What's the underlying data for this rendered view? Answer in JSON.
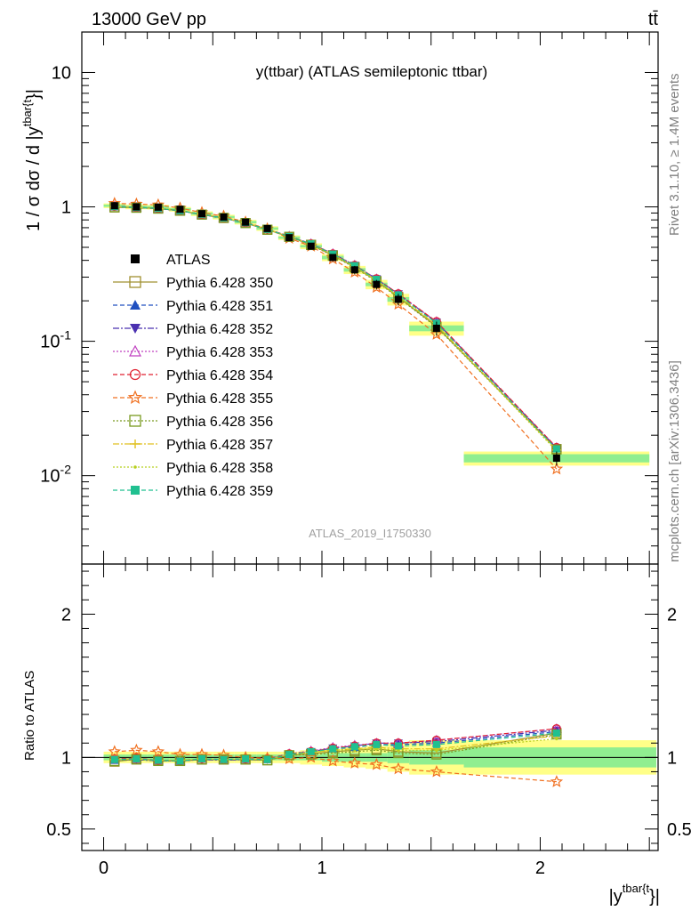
{
  "header": {
    "left": "13000 GeV pp",
    "right": "tt̄"
  },
  "side_labels": {
    "rivet": "Rivet 3.1.10, ≥ 1.4M events",
    "mcplots": "mcplots.cern.ch [arXiv:1306.3436]"
  },
  "chart_data": [
    {
      "type": "line",
      "panel": "main",
      "title": "y(ttbar) (ATLAS semileptonic ttbar)",
      "watermark": "ATLAS_2019_I1750330",
      "ylabel": "1 / σ dσ / d |y^{tbar{t}}|",
      "ylabel_main": "1 / σ dσ / d |y",
      "ylabel_sup": "tbar{t",
      "ylabel_tail": "}|",
      "xlabel": "|y^{tbar{t}}|",
      "yscale": "log",
      "xlim": [
        -0.1,
        2.54
      ],
      "ylim": [
        0.0022,
        20
      ],
      "legend_position": "left-middle",
      "y_ticks": [
        "10",
        "1",
        "10^-1",
        "10^-2"
      ],
      "x_bins": [
        [
          0.0,
          0.1
        ],
        [
          0.1,
          0.2
        ],
        [
          0.2,
          0.3
        ],
        [
          0.3,
          0.4
        ],
        [
          0.4,
          0.5
        ],
        [
          0.5,
          0.6
        ],
        [
          0.6,
          0.7
        ],
        [
          0.7,
          0.8
        ],
        [
          0.8,
          0.9
        ],
        [
          0.9,
          1.0
        ],
        [
          1.0,
          1.1
        ],
        [
          1.1,
          1.2
        ],
        [
          1.2,
          1.3
        ],
        [
          1.3,
          1.4
        ],
        [
          1.4,
          1.65
        ],
        [
          1.65,
          2.5
        ]
      ],
      "x": [
        0.05,
        0.15,
        0.25,
        0.35,
        0.45,
        0.55,
        0.65,
        0.75,
        0.85,
        0.95,
        1.05,
        1.15,
        1.25,
        1.35,
        1.525,
        2.075
      ],
      "data": {
        "name": "ATLAS",
        "values": [
          1.02,
          1.0,
          0.995,
          0.96,
          0.89,
          0.84,
          0.77,
          0.69,
          0.59,
          0.51,
          0.42,
          0.34,
          0.265,
          0.205,
          0.125,
          0.0135
        ],
        "rel_err_stat": [
          0.02,
          0.02,
          0.02,
          0.02,
          0.02,
          0.02,
          0.02,
          0.02,
          0.02,
          0.02,
          0.03,
          0.03,
          0.03,
          0.04,
          0.05,
          0.07
        ],
        "rel_err_total": [
          0.04,
          0.04,
          0.04,
          0.04,
          0.04,
          0.04,
          0.04,
          0.04,
          0.04,
          0.05,
          0.06,
          0.07,
          0.08,
          0.1,
          0.12,
          0.12
        ]
      },
      "series": [
        {
          "name": "Pythia 6.428 350",
          "color": "#a09030",
          "dash": "",
          "marker": "square-open",
          "ratio": [
            0.97,
            0.99,
            0.98,
            0.975,
            0.985,
            0.985,
            0.985,
            0.98,
            1.015,
            1.025,
            1.04,
            1.05,
            1.06,
            1.04,
            1.03,
            1.17
          ]
        },
        {
          "name": "Pythia 6.428 351",
          "color": "#2050c0",
          "dash": "5,3",
          "marker": "triangle-up",
          "ratio": [
            0.98,
            0.99,
            0.98,
            0.98,
            0.99,
            0.985,
            0.985,
            0.985,
            1.02,
            1.04,
            1.06,
            1.07,
            1.09,
            1.09,
            1.1,
            1.18
          ]
        },
        {
          "name": "Pythia 6.428 352",
          "color": "#4a30b0",
          "dash": "7,2,2,2",
          "marker": "triangle-down",
          "ratio": [
            0.985,
            0.985,
            0.975,
            0.975,
            0.985,
            0.98,
            0.985,
            0.985,
            1.02,
            1.04,
            1.065,
            1.08,
            1.1,
            1.1,
            1.11,
            1.19
          ]
        },
        {
          "name": "Pythia 6.428 353",
          "color": "#c040c0",
          "dash": "2,2",
          "marker": "triangle-open",
          "ratio": [
            0.99,
            0.99,
            0.98,
            0.975,
            0.99,
            0.985,
            0.99,
            0.99,
            1.025,
            1.045,
            1.07,
            1.085,
            1.1,
            1.1,
            1.12,
            1.2
          ]
        },
        {
          "name": "Pythia 6.428 354",
          "color": "#e02030",
          "dash": "5,3",
          "marker": "circle-open",
          "ratio": [
            0.99,
            0.995,
            0.98,
            0.975,
            0.99,
            0.985,
            0.99,
            0.99,
            1.025,
            1.04,
            1.065,
            1.08,
            1.1,
            1.1,
            1.12,
            1.2
          ]
        },
        {
          "name": "Pythia 6.428 355",
          "color": "#f07020",
          "dash": "5,3",
          "marker": "star-open",
          "ratio": [
            1.04,
            1.05,
            1.04,
            1.02,
            1.02,
            1.015,
            1.0,
            0.995,
            0.99,
            1.0,
            0.975,
            0.96,
            0.95,
            0.92,
            0.9,
            0.83
          ]
        },
        {
          "name": "Pythia 6.428 356",
          "color": "#7a9a20",
          "dash": "2,2",
          "marker": "square-open",
          "ratio": [
            0.975,
            0.985,
            0.975,
            0.975,
            0.985,
            0.985,
            0.985,
            0.98,
            1.015,
            1.02,
            1.03,
            1.04,
            1.05,
            1.03,
            1.02,
            1.16
          ]
        },
        {
          "name": "Pythia 6.428 357",
          "color": "#e0c020",
          "dash": "7,2,2,2",
          "marker": "tri-star",
          "ratio": [
            0.985,
            0.99,
            0.98,
            0.98,
            0.99,
            0.985,
            0.99,
            0.985,
            1.02,
            1.035,
            1.05,
            1.06,
            1.07,
            1.06,
            1.06,
            1.15
          ]
        },
        {
          "name": "Pythia 6.428 358",
          "color": "#b8d020",
          "dash": "2,2",
          "marker": "dot",
          "ratio": [
            0.985,
            0.99,
            0.98,
            0.98,
            0.99,
            0.985,
            0.99,
            0.985,
            1.02,
            1.035,
            1.05,
            1.055,
            1.06,
            1.05,
            1.05,
            1.13
          ]
        },
        {
          "name": "Pythia 6.428 359",
          "color": "#20c090",
          "dash": "5,3",
          "marker": "square-filled",
          "ratio": [
            0.985,
            0.99,
            0.98,
            0.975,
            0.99,
            0.985,
            0.99,
            0.985,
            1.02,
            1.04,
            1.06,
            1.075,
            1.09,
            1.08,
            1.09,
            1.17
          ]
        }
      ]
    },
    {
      "type": "line",
      "panel": "ratio",
      "ylabel": "Ratio to ATLAS",
      "xlabel": "|y^{tbar{t}}|",
      "xlabel_main": "|y",
      "xlabel_sup": "tbar{t",
      "xlabel_tail": "}|",
      "ylim": [
        0.35,
        2.35
      ],
      "y_ticks": [
        "0.5",
        "1",
        "2"
      ],
      "x_ticks": [
        "0",
        "1",
        "2"
      ],
      "band_colors": {
        "stat": "#90ee90",
        "total": "#ffff88"
      }
    }
  ]
}
